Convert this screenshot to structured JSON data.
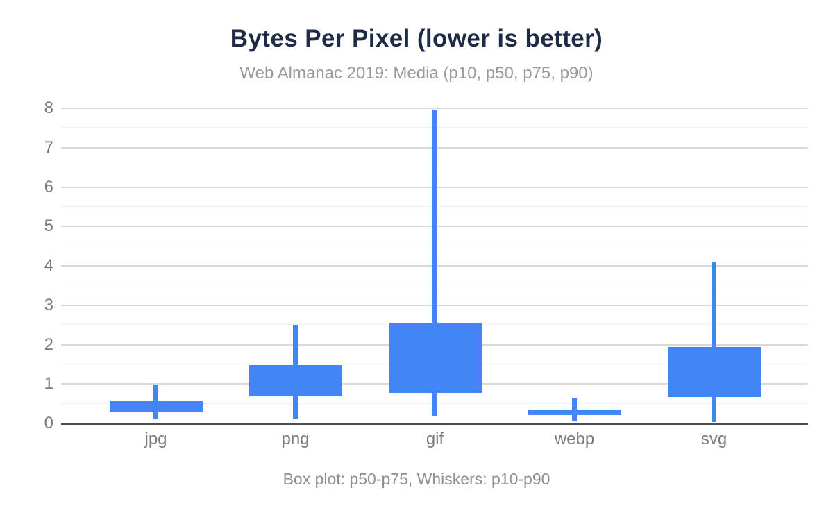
{
  "title": "Bytes Per Pixel (lower is better)",
  "subtitle": "Web Almanac 2019: Media (p10, p50, p75, p90)",
  "footnote": "Box plot: p50-p75, Whiskers: p10-p90",
  "colors": {
    "box_fill": "#4285f4",
    "title_text": "#1f2a47",
    "subtitle_text": "#9a9a9a",
    "axis_label_text": "#7b7b7b",
    "footnote_text": "#8f8f8f",
    "grid_major": "#d9d9d9",
    "grid_minor": "#efefef",
    "axis_line": "#474b52",
    "background": "#ffffff"
  },
  "chart_data": {
    "type": "boxplot",
    "title": "Bytes Per Pixel (lower is better)",
    "subtitle": "Web Almanac 2019: Media (p10, p50, p75, p90)",
    "note": "Box plot: p50-p75, Whiskers: p10-p90",
    "categories": [
      "jpg",
      "png",
      "gif",
      "webp",
      "svg"
    ],
    "series": [
      {
        "name": "jpg",
        "p10": 0.12,
        "p50": 0.3,
        "p75": 0.56,
        "p90": 0.98
      },
      {
        "name": "png",
        "p10": 0.12,
        "p50": 0.68,
        "p75": 1.48,
        "p90": 2.5
      },
      {
        "name": "gif",
        "p10": 0.2,
        "p50": 0.77,
        "p75": 2.55,
        "p90": 7.97
      },
      {
        "name": "webp",
        "p10": 0.06,
        "p50": 0.22,
        "p75": 0.36,
        "p90": 0.64
      },
      {
        "name": "svg",
        "p10": 0.04,
        "p50": 0.67,
        "p75": 1.94,
        "p90": 4.1
      }
    ],
    "box_range": [
      "p50",
      "p75"
    ],
    "whisker_range": [
      "p10",
      "p90"
    ],
    "xlabel": "",
    "ylabel": "",
    "ylim": [
      0,
      8
    ],
    "y_ticks": [
      0,
      1,
      2,
      3,
      4,
      5,
      6,
      7,
      8
    ],
    "minor_gridline_step": 0.5,
    "grid": true,
    "legend": "none"
  }
}
